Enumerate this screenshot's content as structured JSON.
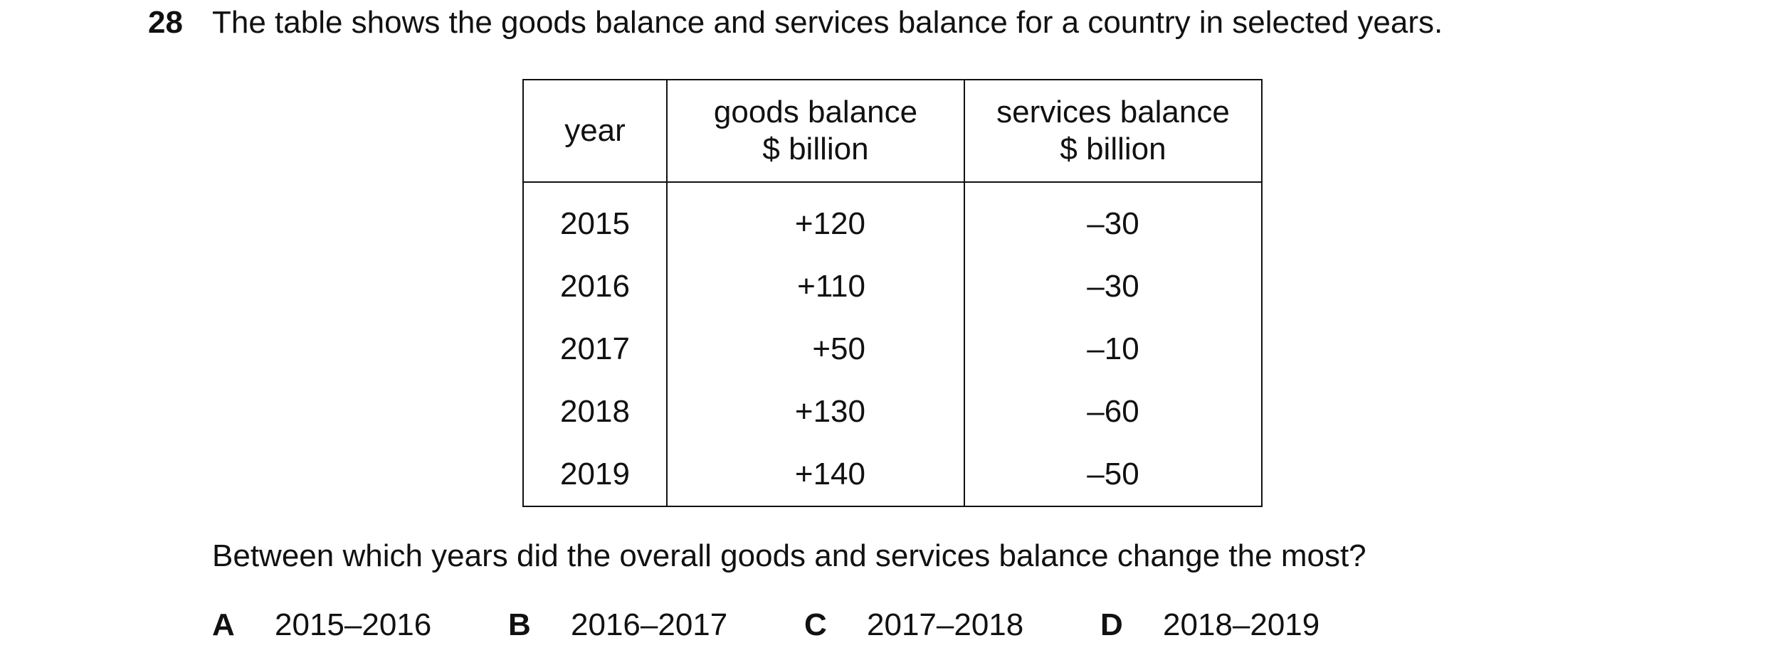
{
  "question": {
    "number": "28",
    "text": "The table shows the goods balance and services balance for a country in selected years."
  },
  "table": {
    "headers": {
      "year": "year",
      "goods_line1": "goods balance",
      "goods_line2": "$ billion",
      "services_line1": "services balance",
      "services_line2": "$ billion"
    },
    "rows": [
      {
        "year": "2015",
        "goods": "+120",
        "services": "–30"
      },
      {
        "year": "2016",
        "goods": "+110",
        "services": "–30"
      },
      {
        "year": "2017",
        "goods": "+50",
        "services": "–10"
      },
      {
        "year": "2018",
        "goods": "+130",
        "services": "–60"
      },
      {
        "year": "2019",
        "goods": "+140",
        "services": "–50"
      }
    ]
  },
  "prompt": "Between which years did the overall goods and services balance change the most?",
  "options": [
    {
      "letter": "A",
      "text": "2015–2016"
    },
    {
      "letter": "B",
      "text": "2016–2017"
    },
    {
      "letter": "C",
      "text": "2017–2018"
    },
    {
      "letter": "D",
      "text": "2018–2019"
    }
  ]
}
